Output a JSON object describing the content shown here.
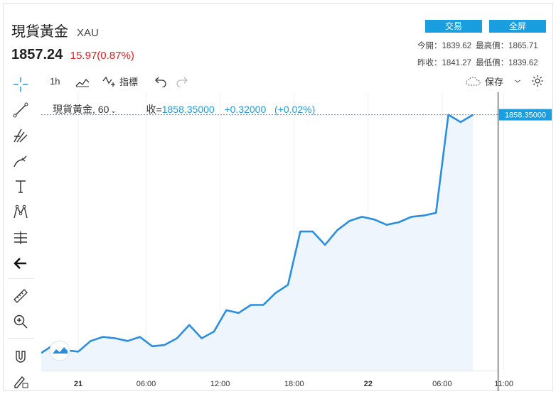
{
  "header": {
    "title": "現貨黃金",
    "code": "XAU",
    "price": "1857.24",
    "change": "15.97(0.87%)"
  },
  "buttons": {
    "trade": "交易",
    "fullscreen": "全屏"
  },
  "stats": {
    "open_label": "今開：",
    "open": "1839.62",
    "high_label": "最高價：",
    "high": "1865.71",
    "prev_label": "昨收：",
    "prev": "1841.27",
    "low_label": "最低價：",
    "low": "1839.62"
  },
  "topbar": {
    "interval": "1h",
    "indicators": "指標",
    "save": "保存"
  },
  "legend": {
    "symbol": "現貨黃金",
    "interval": "60",
    "close_label": "收=",
    "close": "1858.35000",
    "change": "+0.32000",
    "change_pct": "(+0.02%)"
  },
  "colors": {
    "line": "#2a8ee0",
    "fill": "#eef5fc",
    "accent": "#1a9ee0",
    "down": "#e02020"
  },
  "chart_data": {
    "type": "area",
    "x_labels": [
      "21",
      "06:00",
      "12:00",
      "18:00",
      "22",
      "06:00",
      "11:00"
    ],
    "x": [
      "21 00:00",
      "21 01:00",
      "21 02:00",
      "21 03:00",
      "21 04:00",
      "21 05:00",
      "21 06:00",
      "21 07:00",
      "21 08:00",
      "21 09:00",
      "21 10:00",
      "21 11:00",
      "21 12:00",
      "21 13:00",
      "21 14:00",
      "21 15:00",
      "21 16:00",
      "21 17:00",
      "21 18:00",
      "21 19:00",
      "21 20:00",
      "21 21:00",
      "21 22:00",
      "21 23:00",
      "22 00:00",
      "22 01:00",
      "22 02:00",
      "22 03:00",
      "22 04:00",
      "22 05:00",
      "22 06:00",
      "22 07:00",
      "22 08:00",
      "22 09:00",
      "22 10:00",
      "22 11:00"
    ],
    "values": [
      1840.5,
      1841.1,
      1840.7,
      1840.6,
      1841.4,
      1841.7,
      1841.6,
      1841.4,
      1841.7,
      1841.0,
      1841.1,
      1841.6,
      1842.6,
      1841.6,
      1842.1,
      1843.7,
      1843.5,
      1844.1,
      1844.1,
      1845.0,
      1845.6,
      1849.6,
      1849.6,
      1848.6,
      1849.7,
      1850.4,
      1850.7,
      1850.5,
      1850.1,
      1850.3,
      1850.7,
      1850.8,
      1851.0,
      1858.35,
      1857.8,
      1858.35
    ],
    "last_price_label": "1858.35000",
    "y_range": [
      1839.5,
      1859.5
    ],
    "grid": true
  }
}
